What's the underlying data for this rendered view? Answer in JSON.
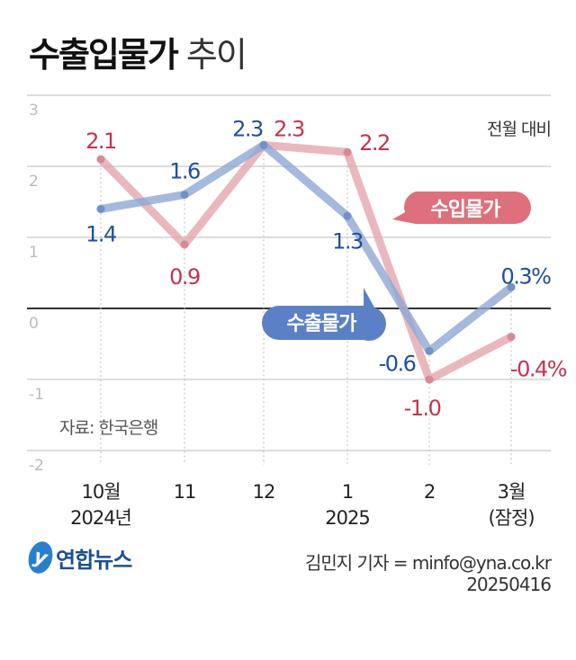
{
  "title": {
    "bold": "수출입물가",
    "light": "추이"
  },
  "chart_data": {
    "type": "line",
    "categories": [
      "10월|2024년",
      "11",
      "12",
      "1|2025",
      "2",
      "3월|(잠정)"
    ],
    "x_tick_labels": [
      [
        "10월",
        "2024년"
      ],
      [
        "11",
        ""
      ],
      [
        "12",
        ""
      ],
      [
        "1",
        "2025"
      ],
      [
        "2",
        ""
      ],
      [
        "3월",
        "(잠정)"
      ]
    ],
    "ylim": [
      -2,
      3
    ],
    "y_ticks": [
      "3",
      "2",
      "1",
      "0",
      "-1",
      "-2"
    ],
    "grid": true,
    "unit_note": "전월 대비",
    "source": "자료: 한국은행",
    "series": [
      {
        "name": "수출물가",
        "color": "#8ea7d4",
        "label_color": "#1f4f9c",
        "bubble_color": "#5b80c6",
        "values": [
          1.4,
          1.6,
          2.3,
          1.3,
          -0.6,
          0.3
        ],
        "labels": [
          "1.4",
          "1.6",
          "2.3",
          "1.3",
          "-0.6",
          "0.3%"
        ]
      },
      {
        "name": "수입물가",
        "color": "#e3a6ae",
        "label_color": "#c2344f",
        "bubble_color": "#de707b",
        "values": [
          2.1,
          0.9,
          2.3,
          2.2,
          -1.0,
          -0.4
        ],
        "labels": [
          "2.1",
          "0.9",
          "2.3",
          "2.2",
          "-1.0",
          "-0.4%"
        ]
      }
    ]
  },
  "footer": {
    "logo": "연합뉴스",
    "byline": "김민지 기자 = minfo@yna.co.kr",
    "date": "20250416"
  }
}
